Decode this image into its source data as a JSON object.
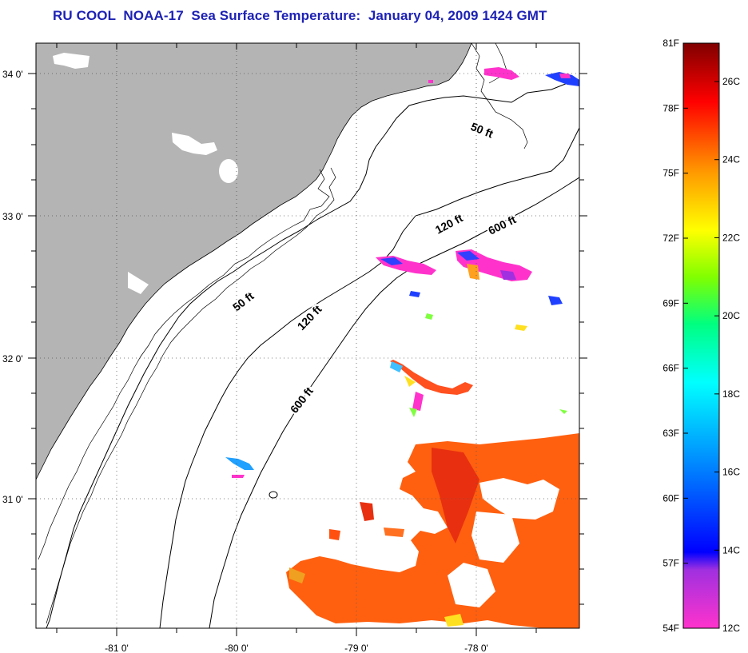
{
  "title": "RU COOL  NOAA-17  Sea Surface Temperature:  January 04, 2009 1424 GMT",
  "colors": {
    "land": "#b4b4b4",
    "ocean": "#ffffff",
    "title": "#1e22b4",
    "coast": "#000000"
  },
  "map": {
    "longitude_ticks": [
      "-81 0'",
      "-80 0'",
      "-79 0'",
      "-78 0'"
    ],
    "latitude_ticks": [
      "34 0'",
      "33 0'",
      "32 0'",
      "31 0'"
    ],
    "grid": "dotted",
    "contour_labels": [
      "50 ft",
      "120 ft",
      "600 ft",
      "50 ft",
      "120 ft",
      "600 ft"
    ]
  },
  "colorbar": {
    "fahrenheit_labels": [
      "81F",
      "78F",
      "75F",
      "72F",
      "69F",
      "66F",
      "63F",
      "60F",
      "57F",
      "54F"
    ],
    "celsius_labels": [
      "26C",
      "24C",
      "22C",
      "20C",
      "18C",
      "16C",
      "14C",
      "12C"
    ],
    "stops": [
      {
        "t": 0.0,
        "color": "#ff33cc"
      },
      {
        "t": 0.1,
        "color": "#a030e0"
      },
      {
        "t": 0.13,
        "color": "#0000ff"
      },
      {
        "t": 0.3,
        "color": "#0099ff"
      },
      {
        "t": 0.42,
        "color": "#00ffff"
      },
      {
        "t": 0.52,
        "color": "#00ff80"
      },
      {
        "t": 0.6,
        "color": "#80ff00"
      },
      {
        "t": 0.68,
        "color": "#ffff00"
      },
      {
        "t": 0.78,
        "color": "#ff9900"
      },
      {
        "t": 0.9,
        "color": "#ff0000"
      },
      {
        "t": 1.0,
        "color": "#800000"
      }
    ]
  }
}
